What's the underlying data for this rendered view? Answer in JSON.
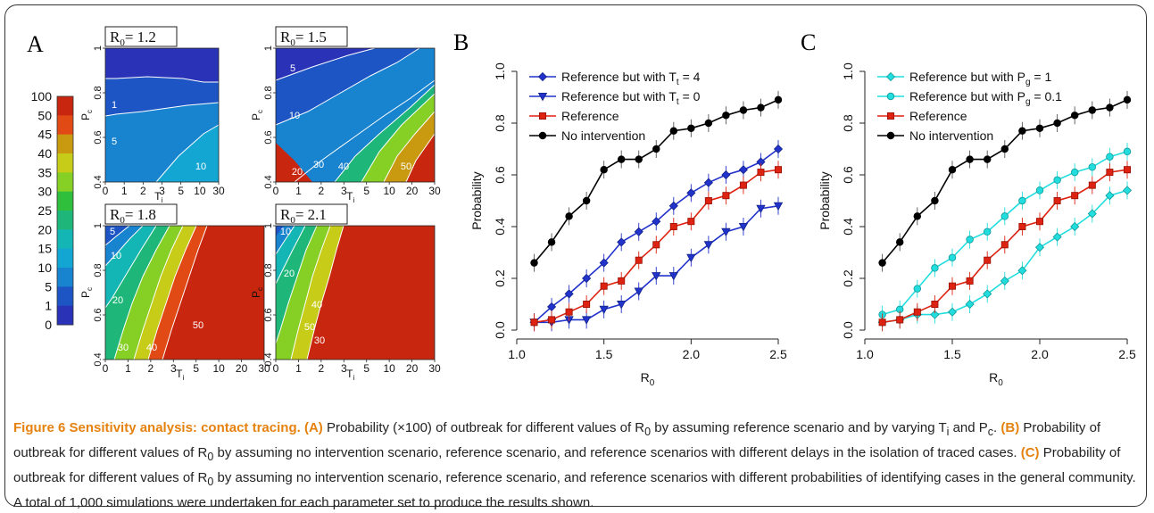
{
  "panels": {
    "a": {
      "letter": "A",
      "colorbar": {
        "labels": [
          "100",
          "50",
          "45",
          "40",
          "35",
          "30",
          "25",
          "20",
          "15",
          "10",
          "5",
          "1",
          "0"
        ],
        "colors": [
          "#c8260f",
          "#e14a14",
          "#c99a10",
          "#c7cc18",
          "#86cf25",
          "#2fbf3c",
          "#1eb779",
          "#13b6b5",
          "#14a6d3",
          "#1883cf",
          "#1e55c4",
          "#2a33b8"
        ]
      },
      "subplots": [
        {
          "r0_text": "R",
          "r0_sub": "0",
          "r0_val": "= 1.2"
        },
        {
          "r0_text": "R",
          "r0_sub": "0",
          "r0_val": "= 1.5"
        },
        {
          "r0_text": "R",
          "r0_sub": "0",
          "r0_val": "= 1.8"
        },
        {
          "r0_text": "R",
          "r0_sub": "0",
          "r0_val": "= 2.1"
        }
      ],
      "x_ticks": [
        "0",
        "1",
        "2",
        "3",
        "5",
        "10",
        "30"
      ],
      "x_ticks_wide": [
        "0",
        "1",
        "2",
        "3",
        "5",
        "10",
        "20",
        "30"
      ],
      "y_ticks": [
        "0.4",
        "0.6",
        "0.8",
        "1"
      ],
      "x_label": "T",
      "x_label_sub": "i",
      "y_label": "P",
      "y_label_sub": "c",
      "contour_labels": [
        [
          "1",
          "5",
          "10"
        ],
        [
          "5",
          "10",
          "20",
          "30",
          "40",
          "50"
        ],
        [
          "5",
          "10",
          "20",
          "30",
          "40",
          "50"
        ],
        [
          "10",
          "20",
          "30",
          "40",
          "50"
        ]
      ]
    },
    "b": {
      "letter": "B",
      "legend": [
        {
          "label": "Reference but with T",
          "sub": "t",
          "tail": " = 4",
          "color": "#2233cc",
          "marker": "diamond"
        },
        {
          "label": "Reference but with T",
          "sub": "t",
          "tail": " = 0",
          "color": "#2233cc",
          "marker": "triangle-down"
        },
        {
          "label": "Reference",
          "sub": "",
          "tail": "",
          "color": "#dd2211",
          "marker": "square"
        },
        {
          "label": "No intervention",
          "sub": "",
          "tail": "",
          "color": "#000000",
          "marker": "circle"
        }
      ]
    },
    "c": {
      "letter": "C",
      "legend": [
        {
          "label": "Reference but with P",
          "sub": "g",
          "tail": " = 1",
          "color": "#22dddd",
          "marker": "diamond"
        },
        {
          "label": "Reference but with P",
          "sub": "g",
          "tail": " = 0.1",
          "color": "#22dddd",
          "marker": "circle"
        },
        {
          "label": "Reference",
          "sub": "",
          "tail": "",
          "color": "#dd2211",
          "marker": "square"
        },
        {
          "label": "No intervention",
          "sub": "",
          "tail": "",
          "color": "#000000",
          "marker": "circle"
        }
      ]
    }
  },
  "chart_data": [
    {
      "type": "line",
      "panel": "B",
      "x": [
        1.1,
        1.2,
        1.3,
        1.4,
        1.5,
        1.6,
        1.7,
        1.8,
        1.9,
        2.0,
        2.1,
        2.2,
        2.3,
        2.4,
        2.5
      ],
      "series": [
        {
          "name": "Reference but with Tt = 4",
          "color": "#2233cc",
          "marker": "diamond",
          "values": [
            0.03,
            0.09,
            0.14,
            0.2,
            0.26,
            0.34,
            0.38,
            0.42,
            0.48,
            0.53,
            0.57,
            0.6,
            0.62,
            0.65,
            0.7
          ]
        },
        {
          "name": "Reference but with Tt = 0",
          "color": "#2233cc",
          "marker": "triangle-down",
          "values": [
            0.03,
            0.03,
            0.04,
            0.04,
            0.08,
            0.1,
            0.15,
            0.21,
            0.21,
            0.28,
            0.33,
            0.38,
            0.4,
            0.47,
            0.48
          ]
        },
        {
          "name": "Reference",
          "color": "#dd2211",
          "marker": "square",
          "values": [
            0.03,
            0.04,
            0.07,
            0.1,
            0.17,
            0.19,
            0.27,
            0.33,
            0.4,
            0.42,
            0.5,
            0.52,
            0.56,
            0.61,
            0.62
          ]
        },
        {
          "name": "No intervention",
          "color": "#000000",
          "marker": "circle",
          "values": [
            0.26,
            0.34,
            0.44,
            0.5,
            0.62,
            0.66,
            0.66,
            0.7,
            0.77,
            0.78,
            0.8,
            0.83,
            0.85,
            0.86,
            0.89
          ]
        }
      ],
      "xlabel": "R0",
      "ylabel": "Probability",
      "xlim": [
        1.0,
        2.5
      ],
      "ylim": [
        0,
        1.0
      ],
      "x_ticks": [
        "1.0",
        "1.5",
        "2.0",
        "2.5"
      ],
      "y_ticks": [
        "0.0",
        "0.2",
        "0.4",
        "0.6",
        "0.8",
        "1.0"
      ]
    },
    {
      "type": "line",
      "panel": "C",
      "x": [
        1.1,
        1.2,
        1.3,
        1.4,
        1.5,
        1.6,
        1.7,
        1.8,
        1.9,
        2.0,
        2.1,
        2.2,
        2.3,
        2.4,
        2.5
      ],
      "series": [
        {
          "name": "Reference but with Pg = 1",
          "color": "#22dddd",
          "marker": "diamond",
          "values": [
            0.03,
            0.04,
            0.06,
            0.06,
            0.07,
            0.1,
            0.14,
            0.19,
            0.23,
            0.32,
            0.36,
            0.4,
            0.45,
            0.52,
            0.54
          ]
        },
        {
          "name": "Reference but with Pg = 0.1",
          "color": "#22dddd",
          "marker": "circle",
          "values": [
            0.06,
            0.08,
            0.16,
            0.24,
            0.28,
            0.35,
            0.38,
            0.44,
            0.5,
            0.54,
            0.58,
            0.61,
            0.63,
            0.67,
            0.69
          ]
        },
        {
          "name": "Reference",
          "color": "#dd2211",
          "marker": "square",
          "values": [
            0.03,
            0.04,
            0.07,
            0.1,
            0.17,
            0.19,
            0.27,
            0.33,
            0.4,
            0.42,
            0.5,
            0.52,
            0.56,
            0.61,
            0.62
          ]
        },
        {
          "name": "No intervention",
          "color": "#000000",
          "marker": "circle",
          "values": [
            0.26,
            0.34,
            0.44,
            0.5,
            0.62,
            0.66,
            0.66,
            0.7,
            0.77,
            0.78,
            0.8,
            0.83,
            0.85,
            0.86,
            0.89
          ]
        }
      ],
      "xlabel": "R0",
      "ylabel": "Probability",
      "xlim": [
        1.0,
        2.5
      ],
      "ylim": [
        0,
        1.0
      ],
      "x_ticks": [
        "1.0",
        "1.5",
        "2.0",
        "2.5"
      ],
      "y_ticks": [
        "0.0",
        "0.2",
        "0.4",
        "0.6",
        "0.8",
        "1.0"
      ]
    }
  ],
  "caption": {
    "title": "Figure 6 Sensitivity analysis: contact tracing.",
    "a_label": "(A)",
    "a_text_1": " Probability (×100) of outbreak for different values of R",
    "a_sub": "0",
    "a_text_2": " by assuming reference scenario and by varying T",
    "a_sub2": "i",
    "a_text_3": " and P",
    "a_sub3": "c",
    "a_text_4": ". ",
    "b_label": "(B)",
    "b_text_1": " Probability of outbreak for different values of R",
    "b_sub": "0",
    "b_text_2": " by assuming no intervention scenario, reference scenario, and reference scenarios with different delays in the isolation of traced cases. ",
    "c_label": "(C)",
    "c_text_1": " Probability of outbreak for different values of R",
    "c_sub": "0",
    "c_text_2": " by assuming no intervention scenario, reference scenario, and reference scenarios with different probabilities of identifying cases in the general community. A total of 1,000 simulations were undertaken for each parameter set to produce the results shown."
  }
}
